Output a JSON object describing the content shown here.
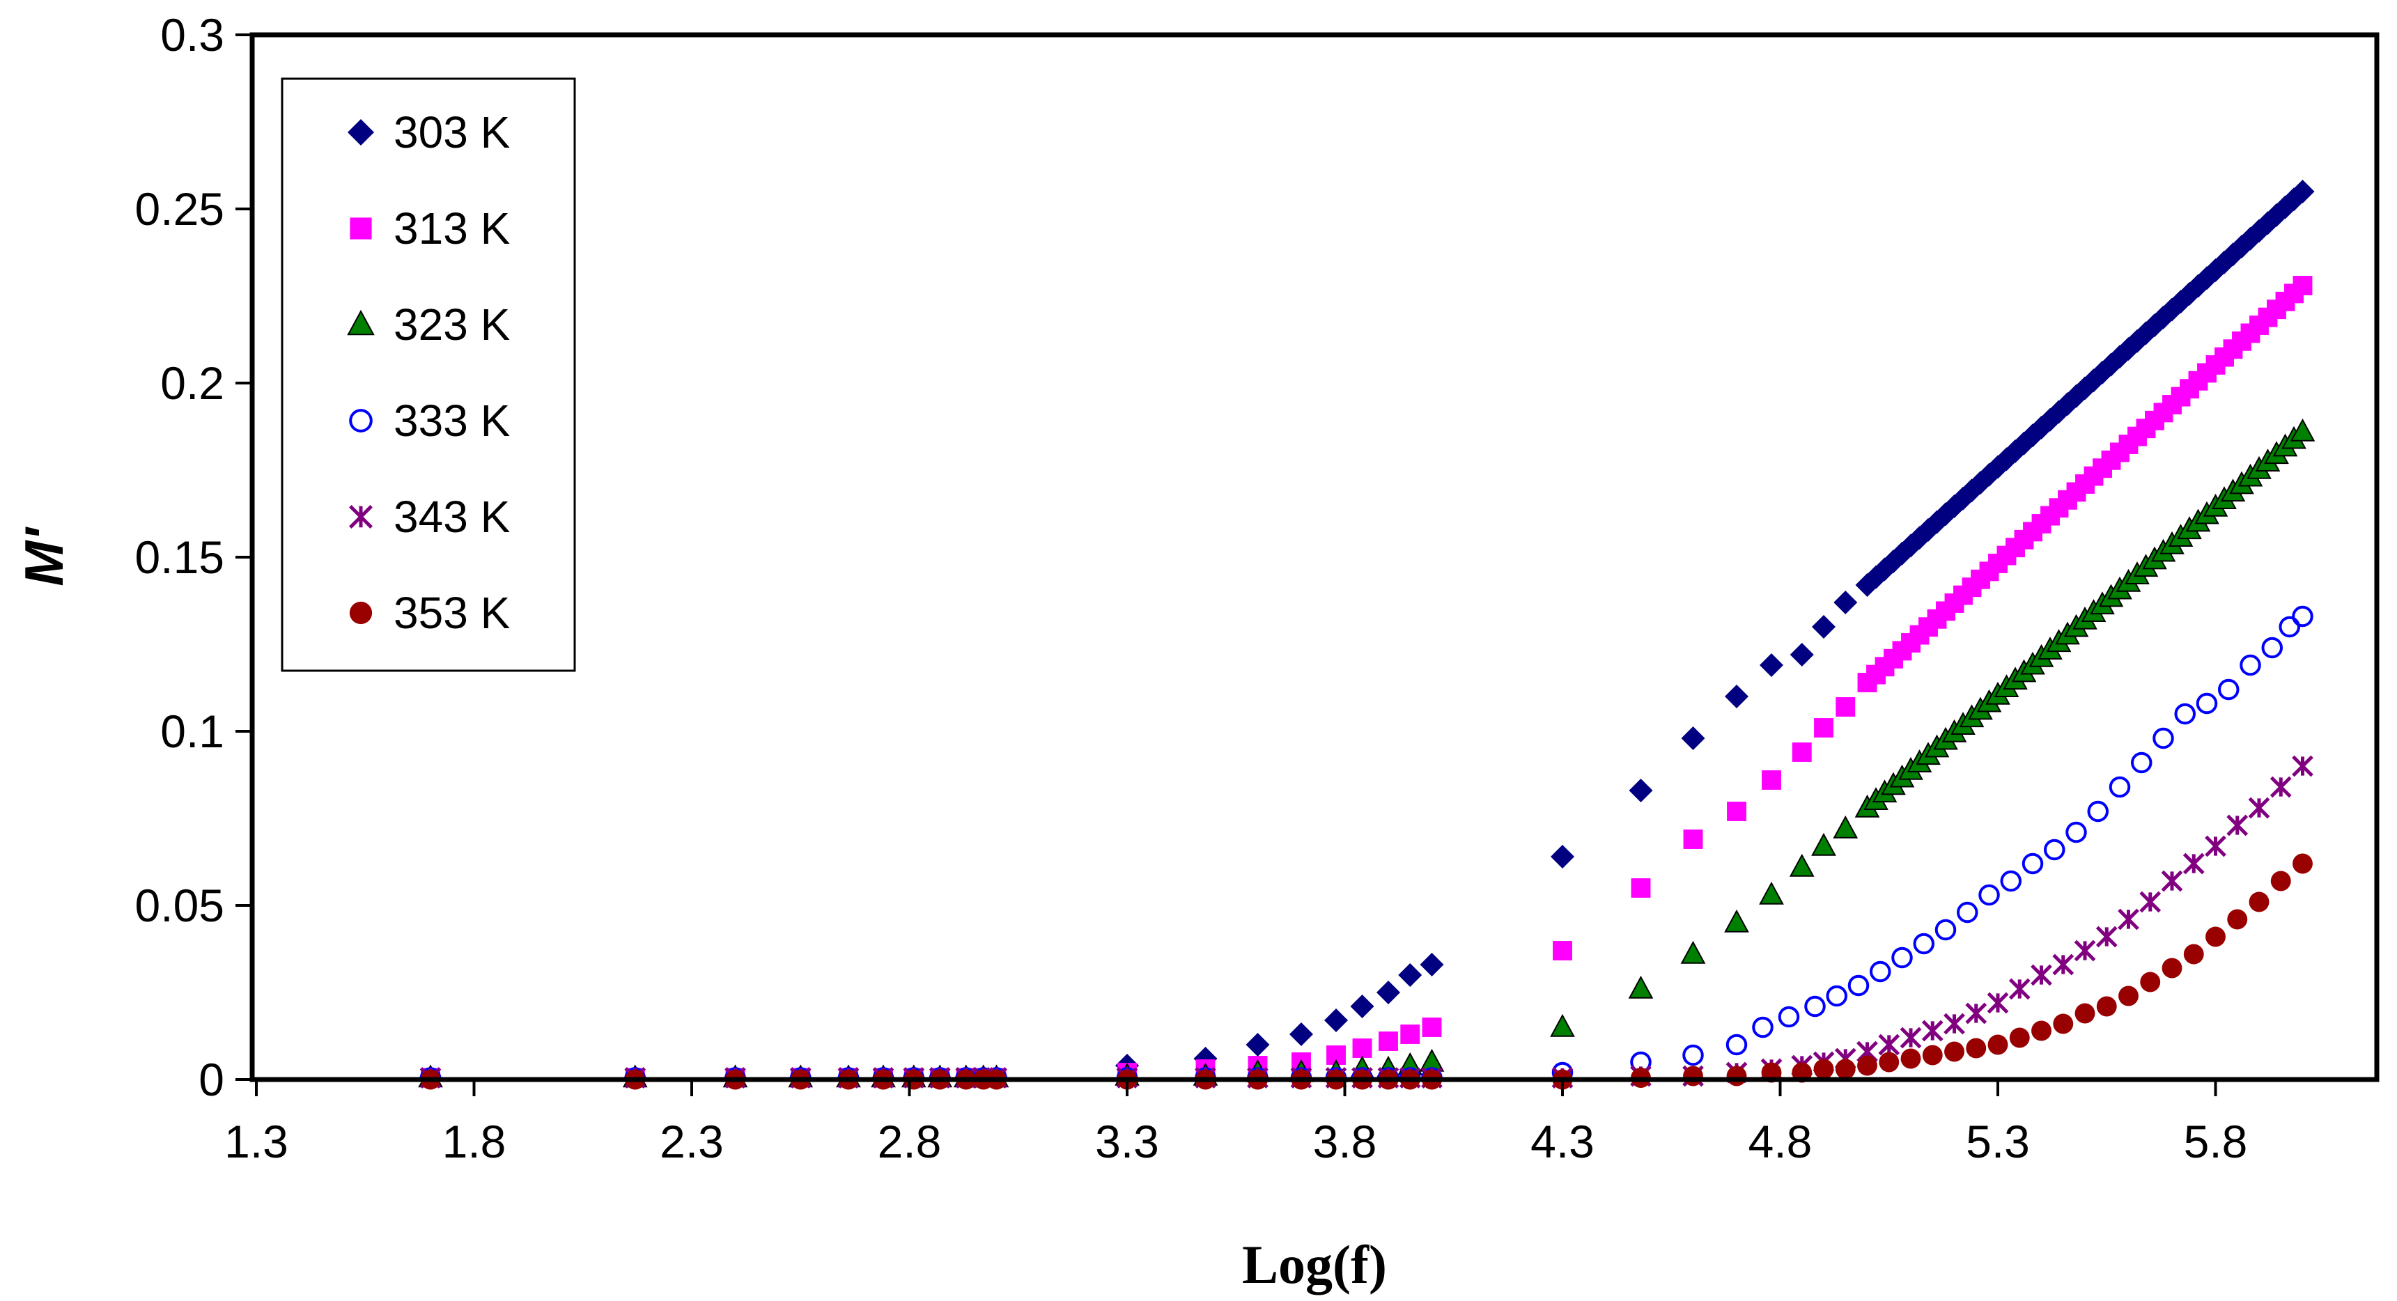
{
  "chart_data": {
    "type": "scatter",
    "title": "",
    "xlabel": "Log(f)",
    "ylabel": "M'",
    "xlim": [
      1.3,
      6.0
    ],
    "ylim": [
      0,
      0.3
    ],
    "xticks": [
      "1.3",
      "1.8",
      "2.3",
      "2.8",
      "3.3",
      "3.8",
      "4.3",
      "4.8",
      "5.3",
      "5.8"
    ],
    "yticks": [
      "0",
      "0.05",
      "0.1",
      "0.15",
      "0.2",
      "0.25",
      "0.3"
    ],
    "grid": false,
    "legend_position": "top-left",
    "low_freq_x": [
      1.7,
      2.17,
      2.4,
      2.55,
      2.66,
      2.74,
      2.81,
      2.87,
      2.93,
      2.97,
      3.0
    ],
    "series": [
      {
        "name": "303 K",
        "marker": "diamond",
        "color": "#000080",
        "low_value": 0.0005,
        "x": [
          3.3,
          3.48,
          3.6,
          3.7,
          3.78,
          3.84,
          3.9,
          3.95,
          4.0,
          4.3,
          4.48,
          4.6,
          4.7,
          4.78,
          4.85,
          4.9,
          4.95,
          5.0
        ],
        "y": [
          0.004,
          0.006,
          0.01,
          0.013,
          0.017,
          0.021,
          0.025,
          0.03,
          0.033,
          0.064,
          0.083,
          0.098,
          0.11,
          0.119,
          0.122,
          0.13,
          0.137,
          0.142
        ],
        "line_to": [
          6.0,
          0.255
        ]
      },
      {
        "name": "313 K",
        "marker": "square",
        "color": "#FF00FF",
        "low_value": 0.0005,
        "x": [
          3.3,
          3.48,
          3.6,
          3.7,
          3.78,
          3.84,
          3.9,
          3.95,
          4.0,
          4.3,
          4.48,
          4.6,
          4.7,
          4.78,
          4.85,
          4.9,
          4.95,
          5.0
        ],
        "y": [
          0.002,
          0.003,
          0.004,
          0.005,
          0.007,
          0.009,
          0.011,
          0.013,
          0.015,
          0.037,
          0.055,
          0.069,
          0.077,
          0.086,
          0.094,
          0.101,
          0.107,
          0.114
        ],
        "line_to": [
          6.0,
          0.228
        ]
      },
      {
        "name": "323 K",
        "marker": "triangle",
        "color": "#008000",
        "low_value": 0.0005,
        "x": [
          3.3,
          3.48,
          3.6,
          3.7,
          3.78,
          3.84,
          3.9,
          3.95,
          4.0,
          4.3,
          4.48,
          4.6,
          4.7,
          4.78,
          4.85,
          4.9,
          4.95,
          5.0
        ],
        "y": [
          0.001,
          0.001,
          0.002,
          0.002,
          0.002,
          0.003,
          0.003,
          0.004,
          0.005,
          0.015,
          0.026,
          0.036,
          0.045,
          0.053,
          0.061,
          0.067,
          0.072,
          0.078
        ],
        "line_to": [
          6.0,
          0.186
        ]
      },
      {
        "name": "333 K",
        "marker": "circle",
        "color": "#0000FF",
        "low_value": 0.0005,
        "x": [
          3.3,
          3.48,
          3.6,
          3.7,
          3.78,
          3.84,
          3.9,
          3.95,
          4.0,
          4.3,
          4.48,
          4.6,
          4.7,
          4.76,
          4.82,
          4.88,
          4.93,
          4.98,
          5.03,
          5.08,
          5.13,
          5.18,
          5.23,
          5.28,
          5.33,
          5.38,
          5.43,
          5.48,
          5.53,
          5.58,
          5.63,
          5.68,
          5.73,
          5.78,
          5.83,
          5.88,
          5.93,
          5.97,
          6.0
        ],
        "y": [
          0.0005,
          0.0005,
          0.0005,
          0.0005,
          0.0005,
          0.0005,
          0.0005,
          0.0005,
          0.0005,
          0.002,
          0.005,
          0.007,
          0.01,
          0.015,
          0.018,
          0.021,
          0.024,
          0.027,
          0.031,
          0.035,
          0.039,
          0.043,
          0.048,
          0.053,
          0.057,
          0.062,
          0.066,
          0.071,
          0.077,
          0.084,
          0.091,
          0.098,
          0.105,
          0.108,
          0.112,
          0.119,
          0.124,
          0.13,
          0.133
        ]
      },
      {
        "name": "343 K",
        "marker": "asterisk",
        "color": "#800080",
        "low_value": 0.0005,
        "x": [
          3.3,
          3.48,
          3.6,
          3.7,
          3.78,
          3.84,
          3.9,
          3.95,
          4.0,
          4.3,
          4.48,
          4.6,
          4.7,
          4.78,
          4.85,
          4.9,
          4.95,
          5.0,
          5.05,
          5.1,
          5.15,
          5.2,
          5.25,
          5.3,
          5.35,
          5.4,
          5.45,
          5.5,
          5.55,
          5.6,
          5.65,
          5.7,
          5.75,
          5.8,
          5.85,
          5.9,
          5.95,
          6.0
        ],
        "y": [
          0.0005,
          0.0005,
          0.0005,
          0.0005,
          0.0005,
          0.0005,
          0.0005,
          0.0005,
          0.0005,
          0.0005,
          0.001,
          0.001,
          0.002,
          0.003,
          0.004,
          0.005,
          0.006,
          0.008,
          0.01,
          0.012,
          0.014,
          0.016,
          0.019,
          0.022,
          0.026,
          0.03,
          0.033,
          0.037,
          0.041,
          0.046,
          0.051,
          0.057,
          0.062,
          0.067,
          0.073,
          0.078,
          0.084,
          0.09
        ]
      },
      {
        "name": "353 K",
        "marker": "dot",
        "color": "#990000",
        "low_value": 0.0,
        "x": [
          3.3,
          3.48,
          3.6,
          3.7,
          3.78,
          3.84,
          3.9,
          3.95,
          4.0,
          4.3,
          4.48,
          4.6,
          4.7,
          4.78,
          4.85,
          4.9,
          4.95,
          5.0,
          5.05,
          5.1,
          5.15,
          5.2,
          5.25,
          5.3,
          5.35,
          5.4,
          5.45,
          5.5,
          5.55,
          5.6,
          5.65,
          5.7,
          5.75,
          5.8,
          5.85,
          5.9,
          5.95,
          6.0
        ],
        "y": [
          0,
          0,
          0,
          0,
          0,
          0,
          0,
          0,
          0,
          0,
          0.0005,
          0.001,
          0.001,
          0.002,
          0.002,
          0.003,
          0.003,
          0.004,
          0.005,
          0.006,
          0.007,
          0.008,
          0.009,
          0.01,
          0.012,
          0.014,
          0.016,
          0.019,
          0.021,
          0.024,
          0.028,
          0.032,
          0.036,
          0.041,
          0.046,
          0.051,
          0.057,
          0.062
        ]
      }
    ]
  }
}
